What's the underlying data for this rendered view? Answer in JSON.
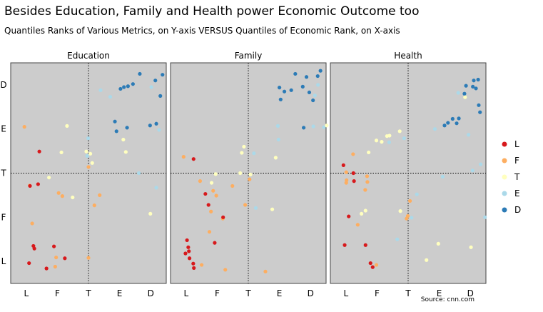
{
  "title": "Besides Education, Family and Health power Economic Outcome too",
  "subtitle": "Quantiles Ranks of Various Metrics, on Y-axis VERSUS Quantiles of Economic Rank, on X-axis",
  "source": "Source: cnn.com",
  "chart_data": {
    "type": "scatter",
    "x_categories": [
      "L",
      "F",
      "T",
      "E",
      "D"
    ],
    "y_categories": [
      "L",
      "F",
      "T",
      "E",
      "D"
    ],
    "xlim": [
      0.5,
      5.5
    ],
    "ylim": [
      0.5,
      5.5
    ],
    "reference_lines": {
      "x": 3,
      "y": 3
    },
    "legend": {
      "position": "right",
      "entries": [
        {
          "label": "L",
          "color": "#d7191c"
        },
        {
          "label": "F",
          "color": "#fdae61"
        },
        {
          "label": "T",
          "color": "#ffffbf"
        },
        {
          "label": "E",
          "color": "#abd9e9"
        },
        {
          "label": "D",
          "color": "#2c7bb6"
        }
      ]
    },
    "panels": [
      {
        "title": "Education",
        "points": [
          {
            "x": 0.94,
            "y": 4.05,
            "g": "F"
          },
          {
            "x": 1.42,
            "y": 3.49,
            "g": "L"
          },
          {
            "x": 1.11,
            "y": 2.72,
            "g": "F"
          },
          {
            "x": 1.12,
            "y": 2.71,
            "g": "L"
          },
          {
            "x": 1.38,
            "y": 2.75,
            "g": "L"
          },
          {
            "x": 1.19,
            "y": 1.86,
            "g": "F"
          },
          {
            "x": 1.23,
            "y": 1.35,
            "g": "L"
          },
          {
            "x": 1.26,
            "y": 1.29,
            "g": "L"
          },
          {
            "x": 1.89,
            "y": 1.34,
            "g": "L"
          },
          {
            "x": 1.09,
            "y": 0.96,
            "g": "L"
          },
          {
            "x": 1.96,
            "y": 1.09,
            "g": "F"
          },
          {
            "x": 1.93,
            "y": 0.88,
            "g": "F"
          },
          {
            "x": 1.65,
            "y": 0.84,
            "g": "L"
          },
          {
            "x": 2.24,
            "y": 1.07,
            "g": "L"
          },
          {
            "x": 1.73,
            "y": 2.9,
            "g": "T"
          },
          {
            "x": 2.31,
            "y": 4.07,
            "g": "T"
          },
          {
            "x": 2.13,
            "y": 3.47,
            "g": "T"
          },
          {
            "x": 2.16,
            "y": 2.48,
            "g": "F"
          },
          {
            "x": 2.04,
            "y": 2.55,
            "g": "F"
          },
          {
            "x": 2.49,
            "y": 2.45,
            "g": "T"
          },
          {
            "x": 2.93,
            "y": 3.49,
            "g": "T"
          },
          {
            "x": 2.96,
            "y": 3.39,
            "g": "E"
          },
          {
            "x": 2.99,
            "y": 3.79,
            "g": "E"
          },
          {
            "x": 3.06,
            "y": 3.44,
            "g": "T"
          },
          {
            "x": 3.0,
            "y": 3.14,
            "g": "F"
          },
          {
            "x": 3.12,
            "y": 3.23,
            "g": "T"
          },
          {
            "x": 3.0,
            "y": 1.08,
            "g": "F"
          },
          {
            "x": 3.36,
            "y": 2.5,
            "g": "F"
          },
          {
            "x": 3.19,
            "y": 2.27,
            "g": "F"
          },
          {
            "x": 3.39,
            "y": 4.88,
            "g": "E"
          },
          {
            "x": 3.7,
            "y": 4.73,
            "g": "E"
          },
          {
            "x": 3.85,
            "y": 4.17,
            "g": "D"
          },
          {
            "x": 3.9,
            "y": 3.95,
            "g": "D"
          },
          {
            "x": 4.24,
            "y": 4.03,
            "g": "D"
          },
          {
            "x": 4.12,
            "y": 3.76,
            "g": "T"
          },
          {
            "x": 4.2,
            "y": 3.48,
            "g": "T"
          },
          {
            "x": 4.03,
            "y": 4.91,
            "g": "D"
          },
          {
            "x": 4.14,
            "y": 4.95,
            "g": "D"
          },
          {
            "x": 4.27,
            "y": 4.97,
            "g": "D"
          },
          {
            "x": 4.43,
            "y": 5.02,
            "g": "D"
          },
          {
            "x": 4.65,
            "y": 5.25,
            "g": "D"
          },
          {
            "x": 4.62,
            "y": 3.0,
            "g": "E"
          },
          {
            "x": 4.98,
            "y": 4.08,
            "g": "D"
          },
          {
            "x": 5.02,
            "y": 4.95,
            "g": "E"
          },
          {
            "x": 5.15,
            "y": 5.1,
            "g": "D"
          },
          {
            "x": 5.31,
            "y": 4.75,
            "g": "D"
          },
          {
            "x": 5.38,
            "y": 5.23,
            "g": "D"
          },
          {
            "x": 5.18,
            "y": 4.12,
            "g": "D"
          },
          {
            "x": 5.27,
            "y": 3.98,
            "g": "E"
          },
          {
            "x": 4.99,
            "y": 2.08,
            "g": "T"
          },
          {
            "x": 5.18,
            "y": 2.67,
            "g": "E"
          }
        ]
      },
      {
        "title": "Family",
        "points": [
          {
            "x": 0.92,
            "y": 3.37,
            "g": "F"
          },
          {
            "x": 1.24,
            "y": 3.32,
            "g": "L"
          },
          {
            "x": 1.45,
            "y": 2.82,
            "g": "F"
          },
          {
            "x": 1.95,
            "y": 2.98,
            "g": "T"
          },
          {
            "x": 1.62,
            "y": 2.53,
            "g": "L"
          },
          {
            "x": 1.72,
            "y": 2.28,
            "g": "L"
          },
          {
            "x": 1.82,
            "y": 2.78,
            "g": "T"
          },
          {
            "x": 1.87,
            "y": 2.6,
            "g": "F"
          },
          {
            "x": 1.97,
            "y": 2.49,
            "g": "F"
          },
          {
            "x": 1.8,
            "y": 2.13,
            "g": "F"
          },
          {
            "x": 1.75,
            "y": 1.67,
            "g": "F"
          },
          {
            "x": 1.03,
            "y": 1.48,
            "g": "L"
          },
          {
            "x": 0.98,
            "y": 1.18,
            "g": "L"
          },
          {
            "x": 1.09,
            "y": 1.23,
            "g": "L"
          },
          {
            "x": 1.07,
            "y": 1.32,
            "g": "L"
          },
          {
            "x": 1.11,
            "y": 1.07,
            "g": "L"
          },
          {
            "x": 1.23,
            "y": 0.95,
            "g": "L"
          },
          {
            "x": 1.25,
            "y": 0.85,
            "g": "L"
          },
          {
            "x": 1.5,
            "y": 0.92,
            "g": "F"
          },
          {
            "x": 1.92,
            "y": 1.42,
            "g": "L"
          },
          {
            "x": 2.26,
            "y": 0.81,
            "g": "F"
          },
          {
            "x": 2.18,
            "y": 1.97,
            "g": "F"
          },
          {
            "x": 2.19,
            "y": 2.0,
            "g": "L"
          },
          {
            "x": 2.49,
            "y": 2.71,
            "g": "F"
          },
          {
            "x": 2.9,
            "y": 2.28,
            "g": "F"
          },
          {
            "x": 2.79,
            "y": 3.46,
            "g": "T"
          },
          {
            "x": 2.74,
            "y": 3.0,
            "g": "T"
          },
          {
            "x": 2.86,
            "y": 3.6,
            "g": "T"
          },
          {
            "x": 3.04,
            "y": 2.86,
            "g": "F"
          },
          {
            "x": 3.07,
            "y": 2.97,
            "g": "T"
          },
          {
            "x": 3.18,
            "y": 3.45,
            "g": "E"
          },
          {
            "x": 3.24,
            "y": 2.21,
            "g": "E"
          },
          {
            "x": 3.55,
            "y": 0.77,
            "g": "F"
          },
          {
            "x": 3.77,
            "y": 2.18,
            "g": "T"
          },
          {
            "x": 3.95,
            "y": 4.07,
            "g": "E"
          },
          {
            "x": 3.97,
            "y": 3.76,
            "g": "E"
          },
          {
            "x": 3.88,
            "y": 3.35,
            "g": "T"
          },
          {
            "x": 4.04,
            "y": 4.67,
            "g": "D"
          },
          {
            "x": 4.16,
            "y": 4.85,
            "g": "D"
          },
          {
            "x": 4.38,
            "y": 4.88,
            "g": "D"
          },
          {
            "x": 4.75,
            "y": 4.96,
            "g": "D"
          },
          {
            "x": 4.96,
            "y": 4.83,
            "g": "D"
          },
          {
            "x": 5.14,
            "y": 4.76,
            "g": "E"
          },
          {
            "x": 5.24,
            "y": 5.0,
            "g": "E"
          },
          {
            "x": 4.51,
            "y": 5.25,
            "g": "D"
          },
          {
            "x": 4.87,
            "y": 5.18,
            "g": "D"
          },
          {
            "x": 5.23,
            "y": 5.2,
            "g": "D"
          },
          {
            "x": 5.32,
            "y": 5.32,
            "g": "D"
          },
          {
            "x": 5.09,
            "y": 4.06,
            "g": "E"
          },
          {
            "x": 5.08,
            "y": 4.65,
            "g": "D"
          },
          {
            "x": 5.43,
            "y": 4.04,
            "g": "E"
          },
          {
            "x": 5.52,
            "y": 4.08,
            "g": "T"
          },
          {
            "x": 4.78,
            "y": 4.03,
            "g": "D"
          },
          {
            "x": 4.0,
            "y": 4.94,
            "g": "D"
          }
        ]
      },
      {
        "title": "Health",
        "points": [
          {
            "x": 0.92,
            "y": 3.18,
            "g": "L"
          },
          {
            "x": 1.01,
            "y": 3.02,
            "g": "F"
          },
          {
            "x": 1.24,
            "y": 3.0,
            "g": "L"
          },
          {
            "x": 1.02,
            "y": 2.84,
            "g": "F"
          },
          {
            "x": 1.01,
            "y": 2.78,
            "g": "F"
          },
          {
            "x": 1.26,
            "y": 2.82,
            "g": "L"
          },
          {
            "x": 1.69,
            "y": 2.8,
            "g": "F"
          },
          {
            "x": 1.09,
            "y": 2.02,
            "g": "L"
          },
          {
            "x": 1.38,
            "y": 1.83,
            "g": "F"
          },
          {
            "x": 1.5,
            "y": 2.08,
            "g": "T"
          },
          {
            "x": 1.63,
            "y": 2.15,
            "g": "T"
          },
          {
            "x": 0.96,
            "y": 1.37,
            "g": "L"
          },
          {
            "x": 1.63,
            "y": 1.37,
            "g": "L"
          },
          {
            "x": 1.79,
            "y": 0.96,
            "g": "L"
          },
          {
            "x": 1.86,
            "y": 0.87,
            "g": "L"
          },
          {
            "x": 1.98,
            "y": 0.92,
            "g": "F"
          },
          {
            "x": 1.62,
            "y": 2.62,
            "g": "F"
          },
          {
            "x": 1.68,
            "y": 2.93,
            "g": "F"
          },
          {
            "x": 1.73,
            "y": 3.47,
            "g": "T"
          },
          {
            "x": 1.98,
            "y": 3.74,
            "g": "T"
          },
          {
            "x": 2.15,
            "y": 3.71,
            "g": "T"
          },
          {
            "x": 2.32,
            "y": 3.84,
            "g": "T"
          },
          {
            "x": 2.4,
            "y": 3.85,
            "g": "T"
          },
          {
            "x": 2.73,
            "y": 3.95,
            "g": "T"
          },
          {
            "x": 2.39,
            "y": 3.7,
            "g": "E"
          },
          {
            "x": 2.87,
            "y": 3.79,
            "g": "E"
          },
          {
            "x": 2.75,
            "y": 2.14,
            "g": "T"
          },
          {
            "x": 2.99,
            "y": 2.03,
            "g": "F"
          },
          {
            "x": 3.11,
            "y": 1.99,
            "g": "E"
          },
          {
            "x": 3.28,
            "y": 2.52,
            "g": "E"
          },
          {
            "x": 2.65,
            "y": 1.5,
            "g": "E"
          },
          {
            "x": 3.06,
            "y": 2.37,
            "g": "F"
          },
          {
            "x": 2.95,
            "y": 1.97,
            "g": "F"
          },
          {
            "x": 1.23,
            "y": 3.43,
            "g": "F"
          },
          {
            "x": 3.59,
            "y": 1.03,
            "g": "T"
          },
          {
            "x": 3.97,
            "y": 1.4,
            "g": "T"
          },
          {
            "x": 4.11,
            "y": 2.92,
            "g": "E"
          },
          {
            "x": 3.86,
            "y": 4.0,
            "g": "E"
          },
          {
            "x": 4.17,
            "y": 4.08,
            "g": "D"
          },
          {
            "x": 4.28,
            "y": 4.14,
            "g": "D"
          },
          {
            "x": 4.56,
            "y": 4.13,
            "g": "D"
          },
          {
            "x": 4.43,
            "y": 4.23,
            "g": "D"
          },
          {
            "x": 4.63,
            "y": 4.24,
            "g": "D"
          },
          {
            "x": 4.81,
            "y": 4.8,
            "g": "D"
          },
          {
            "x": 4.83,
            "y": 4.72,
            "g": "T"
          },
          {
            "x": 4.86,
            "y": 4.98,
            "g": "D"
          },
          {
            "x": 5.08,
            "y": 4.96,
            "g": "D"
          },
          {
            "x": 5.11,
            "y": 5.1,
            "g": "D"
          },
          {
            "x": 5.25,
            "y": 5.12,
            "g": "D"
          },
          {
            "x": 5.18,
            "y": 4.92,
            "g": "D"
          },
          {
            "x": 5.27,
            "y": 4.54,
            "g": "D"
          },
          {
            "x": 5.31,
            "y": 4.38,
            "g": "D"
          },
          {
            "x": 5.07,
            "y": 3.06,
            "g": "E"
          },
          {
            "x": 5.33,
            "y": 3.2,
            "g": "E"
          },
          {
            "x": 5.02,
            "y": 1.32,
            "g": "T"
          },
          {
            "x": 5.47,
            "y": 2.0,
            "g": "E"
          },
          {
            "x": 4.61,
            "y": 4.82,
            "g": "E"
          },
          {
            "x": 4.94,
            "y": 3.87,
            "g": "E"
          }
        ]
      }
    ]
  }
}
